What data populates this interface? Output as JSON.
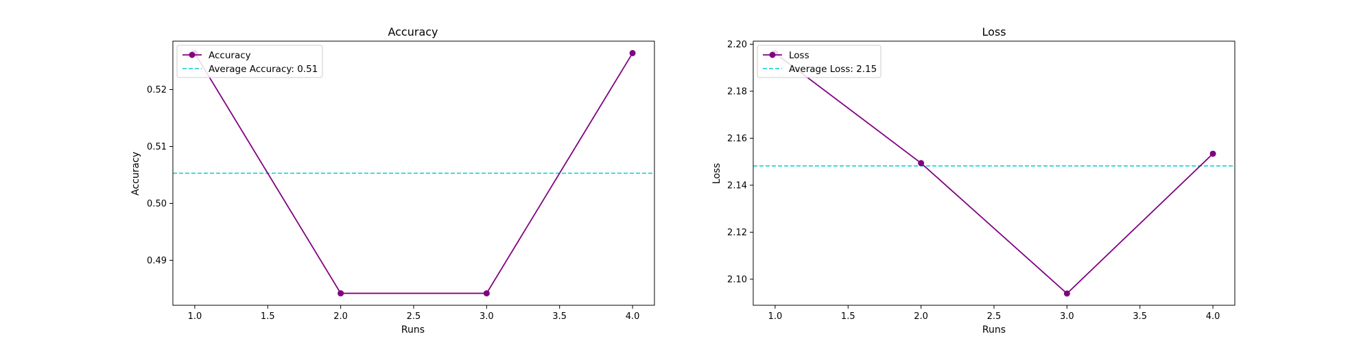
{
  "colors": {
    "series": "#800080",
    "average": "#00CED1",
    "axes": "#000000",
    "background": "#ffffff"
  },
  "chart_data": [
    {
      "type": "line",
      "title": "Accuracy",
      "xlabel": "Runs",
      "ylabel": "Accuracy",
      "x": [
        1.0,
        2.0,
        3.0,
        4.0
      ],
      "series": [
        {
          "name": "Accuracy",
          "values": [
            0.5264,
            0.4842,
            0.4842,
            0.5264
          ]
        }
      ],
      "average_line": {
        "label": "Average Accuracy: 0.51",
        "value": 0.5053
      },
      "xlim": [
        0.85,
        4.15
      ],
      "ylim": [
        0.4821,
        0.5285
      ],
      "xticks": [
        1.0,
        1.5,
        2.0,
        2.5,
        3.0,
        3.5,
        4.0
      ],
      "xtick_labels": [
        "1.0",
        "1.5",
        "2.0",
        "2.5",
        "3.0",
        "3.5",
        "4.0"
      ],
      "yticks": [
        0.49,
        0.5,
        0.51,
        0.52
      ],
      "ytick_labels": [
        "0.49",
        "0.50",
        "0.51",
        "0.52"
      ],
      "legend": "upper-left",
      "grid": false
    },
    {
      "type": "line",
      "title": "Loss",
      "xlabel": "Runs",
      "ylabel": "Loss",
      "x": [
        1.0,
        2.0,
        3.0,
        4.0
      ],
      "series": [
        {
          "name": "Loss",
          "values": [
            2.1962,
            2.1494,
            2.0939,
            2.1534
          ]
        }
      ],
      "average_line": {
        "label": "Average Loss: 2.15",
        "value": 2.1482
      },
      "xlim": [
        0.85,
        4.15
      ],
      "ylim": [
        2.0889,
        2.2013
      ],
      "xticks": [
        1.0,
        1.5,
        2.0,
        2.5,
        3.0,
        3.5,
        4.0
      ],
      "xtick_labels": [
        "1.0",
        "1.5",
        "2.0",
        "2.5",
        "3.0",
        "3.5",
        "4.0"
      ],
      "yticks": [
        2.1,
        2.12,
        2.14,
        2.16,
        2.18,
        2.2
      ],
      "ytick_labels": [
        "2.10",
        "2.12",
        "2.14",
        "2.16",
        "2.18",
        "2.20"
      ],
      "legend": "upper-left",
      "grid": false
    }
  ]
}
